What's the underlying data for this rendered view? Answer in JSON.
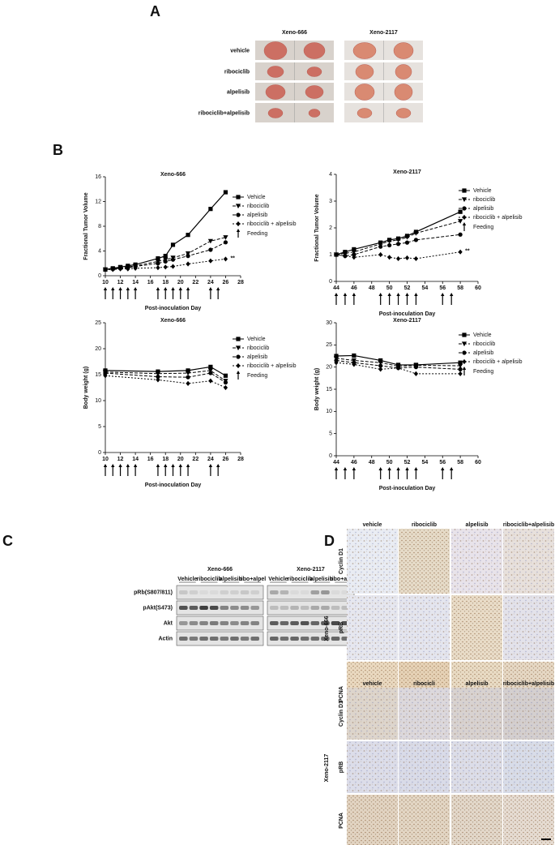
{
  "panel_a": {
    "label": "A",
    "columns": [
      "Xeno-666",
      "Xeno-2117"
    ],
    "rows": [
      "vehicle",
      "ribociclib",
      "alpelisib",
      "ribociclib+alpelisib"
    ]
  },
  "panel_b": {
    "label": "B"
  },
  "chart_data": [
    {
      "type": "line",
      "title": "Xeno-666",
      "x_label": "Post-inoculation Day",
      "y_label": "Fractional Tumor Volume",
      "x": [
        10,
        11,
        12,
        13,
        14,
        17,
        18,
        19,
        21,
        24,
        26
      ],
      "xlim": [
        10,
        28
      ],
      "xticks": [
        10,
        12,
        14,
        16,
        18,
        20,
        22,
        24,
        26,
        28
      ],
      "ylim": [
        0,
        16
      ],
      "yticks": [
        0,
        4,
        8,
        12,
        16
      ],
      "series": [
        {
          "name": "Vehicle",
          "color": "#000000",
          "dash": "solid",
          "marker": "square",
          "values": [
            1,
            1.2,
            1.4,
            1.6,
            1.8,
            2.8,
            3.2,
            5,
            6.6,
            10.8,
            13.5
          ]
        },
        {
          "name": "ribociclib",
          "color": "#000000",
          "dash": "dashed",
          "marker": "triangle",
          "values": [
            1,
            1.1,
            1.3,
            1.4,
            1.6,
            2.3,
            2.6,
            2.9,
            3.6,
            5.6,
            6.2
          ]
        },
        {
          "name": "alpelisib",
          "color": "#000000",
          "dash": "dashed",
          "marker": "circle",
          "values": [
            1,
            1.1,
            1.2,
            1.3,
            1.5,
            2,
            2.3,
            2.6,
            3.2,
            4.2,
            5.4
          ]
        },
        {
          "name": "ribociclib + alpelisib",
          "color": "#000000",
          "dash": "dotted",
          "marker": "diamond",
          "values": [
            1,
            1,
            1.1,
            1.1,
            1.2,
            1.3,
            1.4,
            1.5,
            1.9,
            2.4,
            2.7
          ]
        }
      ],
      "feeding_label": "Feeding",
      "feeding_days": [
        10,
        11,
        12,
        13,
        14,
        17,
        18,
        19,
        20,
        21,
        24,
        25
      ],
      "annotation": "**"
    },
    {
      "type": "line",
      "title": "Xeno-2117",
      "x_label": "Post-inoculation Day",
      "y_label": "Fractional Tumor Volume",
      "x": [
        44,
        45,
        46,
        49,
        50,
        51,
        52,
        53,
        58
      ],
      "xlim": [
        44,
        60
      ],
      "xticks": [
        44,
        46,
        48,
        50,
        52,
        54,
        56,
        58,
        60
      ],
      "ylim": [
        0,
        4
      ],
      "yticks": [
        0,
        1,
        2,
        3,
        4
      ],
      "series": [
        {
          "name": "Vehicle",
          "color": "#000000",
          "dash": "solid",
          "marker": "square",
          "values": [
            1,
            1.1,
            1.2,
            1.45,
            1.55,
            1.6,
            1.7,
            1.85,
            2.6
          ]
        },
        {
          "name": "ribociclib",
          "color": "#000000",
          "dash": "dashed",
          "marker": "triangle",
          "values": [
            1,
            1.05,
            1.1,
            1.4,
            1.5,
            1.55,
            1.65,
            1.8,
            2.25
          ]
        },
        {
          "name": "alpelisib",
          "color": "#000000",
          "dash": "dashed",
          "marker": "circle",
          "values": [
            1,
            0.95,
            1,
            1.3,
            1.35,
            1.4,
            1.45,
            1.55,
            1.75
          ]
        },
        {
          "name": "ribociclib + alpelisib",
          "color": "#000000",
          "dash": "dotted",
          "marker": "diamond",
          "values": [
            1,
            0.95,
            0.9,
            1,
            0.9,
            0.85,
            0.88,
            0.85,
            1.1
          ]
        }
      ],
      "feeding_label": "Feeding",
      "feeding_days": [
        44,
        45,
        46,
        49,
        50,
        51,
        52,
        53,
        56,
        57
      ],
      "annotation": "**"
    },
    {
      "type": "line",
      "title": "Xeno-666",
      "x_label": "Post-inoculation Day",
      "y_label": "Body weight (g)",
      "x": [
        10,
        17,
        21,
        24,
        26
      ],
      "xlim": [
        10,
        28
      ],
      "xticks": [
        10,
        12,
        14,
        16,
        18,
        20,
        22,
        24,
        26,
        28
      ],
      "ylim": [
        0,
        25
      ],
      "yticks": [
        0,
        5,
        10,
        15,
        20,
        25
      ],
      "series": [
        {
          "name": "Vehicle",
          "color": "#000000",
          "dash": "solid",
          "marker": "square",
          "values": [
            15.8,
            15.6,
            15.8,
            16.5,
            14.8
          ]
        },
        {
          "name": "ribociclib",
          "color": "#000000",
          "dash": "dashed",
          "marker": "triangle",
          "values": [
            15.5,
            15.2,
            15.3,
            15.8,
            13.8
          ]
        },
        {
          "name": "alpelisib",
          "color": "#000000",
          "dash": "dashed",
          "marker": "circle",
          "values": [
            15.3,
            14.6,
            14.5,
            15.3,
            13.5
          ]
        },
        {
          "name": "ribociclib + alpelisib",
          "color": "#000000",
          "dash": "dotted",
          "marker": "diamond",
          "values": [
            14.8,
            14,
            13.3,
            13.8,
            12.5
          ]
        }
      ],
      "feeding_label": "Feeding",
      "feeding_days": [
        10,
        11,
        12,
        13,
        14,
        17,
        18,
        19,
        20,
        21,
        24,
        25
      ]
    },
    {
      "type": "line",
      "title": "Xeno-2117",
      "x_label": "Post-inoculation Day",
      "y_label": "Body weight (g)",
      "x": [
        44,
        46,
        49,
        51,
        53,
        58
      ],
      "xlim": [
        44,
        60
      ],
      "xticks": [
        44,
        46,
        48,
        50,
        52,
        54,
        56,
        58,
        60
      ],
      "ylim": [
        0,
        30
      ],
      "yticks": [
        0,
        5,
        10,
        15,
        20,
        25,
        30
      ],
      "series": [
        {
          "name": "Vehicle",
          "color": "#000000",
          "dash": "solid",
          "marker": "square",
          "values": [
            22.5,
            22.6,
            21.5,
            20.5,
            20.5,
            21
          ]
        },
        {
          "name": "ribociclib",
          "color": "#000000",
          "dash": "dashed",
          "marker": "triangle",
          "values": [
            22,
            21.5,
            21,
            20.2,
            20.4,
            20.3
          ]
        },
        {
          "name": "alpelisib",
          "color": "#000000",
          "dash": "dashed",
          "marker": "circle",
          "values": [
            21.5,
            21,
            20.3,
            19.8,
            20,
            19.5
          ]
        },
        {
          "name": "ribociclib + alpelisib",
          "color": "#000000",
          "dash": "dotted",
          "marker": "diamond",
          "values": [
            21,
            20.6,
            19.5,
            19.8,
            18.5,
            18.5
          ]
        }
      ],
      "feeding_label": "Feeding",
      "feeding_days": [
        44,
        45,
        46,
        49,
        50,
        51,
        52,
        53,
        56,
        57
      ]
    }
  ],
  "panel_c": {
    "label": "C",
    "groups": [
      {
        "name": "Xeno-666",
        "lanes": [
          "Vehicle",
          "ribociclib",
          "alpelisib",
          "ribo+alpel"
        ]
      },
      {
        "name": "Xeno-2117",
        "lanes": [
          "Vehicle",
          "ribociclib",
          "alpelisib",
          "ribo+alpel"
        ]
      }
    ],
    "rows": [
      "pRb(S807/811)",
      "pAkt(S473)",
      "Akt",
      "Actin"
    ]
  },
  "panel_d": {
    "label": "D",
    "blocks": [
      {
        "name": "Xeno-666",
        "columns": [
          "vehicle",
          "ribociclib",
          "alpelisib",
          "ribociclib+alpelisib"
        ],
        "rows": [
          "Cyclin D1",
          "pRB",
          "PCNA"
        ]
      },
      {
        "name": "Xeno-2117",
        "columns": [
          "vehicle",
          "ribocicli",
          "alpelisib",
          "ribociclib+alpelisib"
        ],
        "rows": [
          "Cyclin D1",
          "pRB",
          "PCNA"
        ]
      }
    ]
  }
}
